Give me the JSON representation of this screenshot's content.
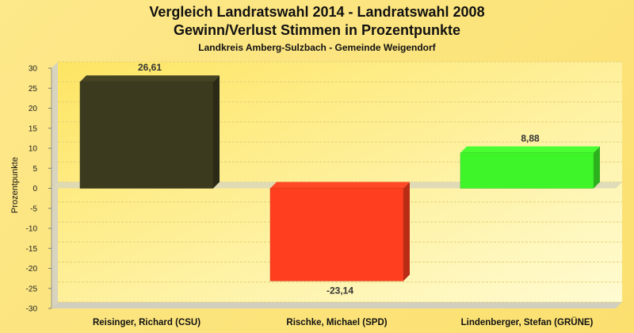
{
  "chart_data": {
    "type": "bar",
    "title": "Vergleich Landratswahl 2014 - Landratswahl 2008",
    "title_line2": "Gewinn/Verlust Stimmen in Prozentpunkte",
    "subtitle": "Landkreis Amberg-Sulzbach - Gemeinde Weigendorf",
    "xlabel": "",
    "ylabel": "Prozentpunkte",
    "ylim": [
      -30,
      30
    ],
    "yticks": [
      30,
      25,
      20,
      15,
      10,
      5,
      0,
      -5,
      -10,
      -15,
      -20,
      -25,
      -30
    ],
    "grid": true,
    "categories": [
      "Reisinger, Richard (CSU)",
      "Rischke, Michael (SPD)",
      "Lindenberger, Stefan (GRÜNE)"
    ],
    "values": [
      26.61,
      -23.14,
      8.88
    ],
    "value_labels": [
      "26,61",
      "-23,14",
      "8,88"
    ],
    "colors": [
      "#3b3a1e",
      "#ff3d1f",
      "#3ef52a"
    ]
  }
}
